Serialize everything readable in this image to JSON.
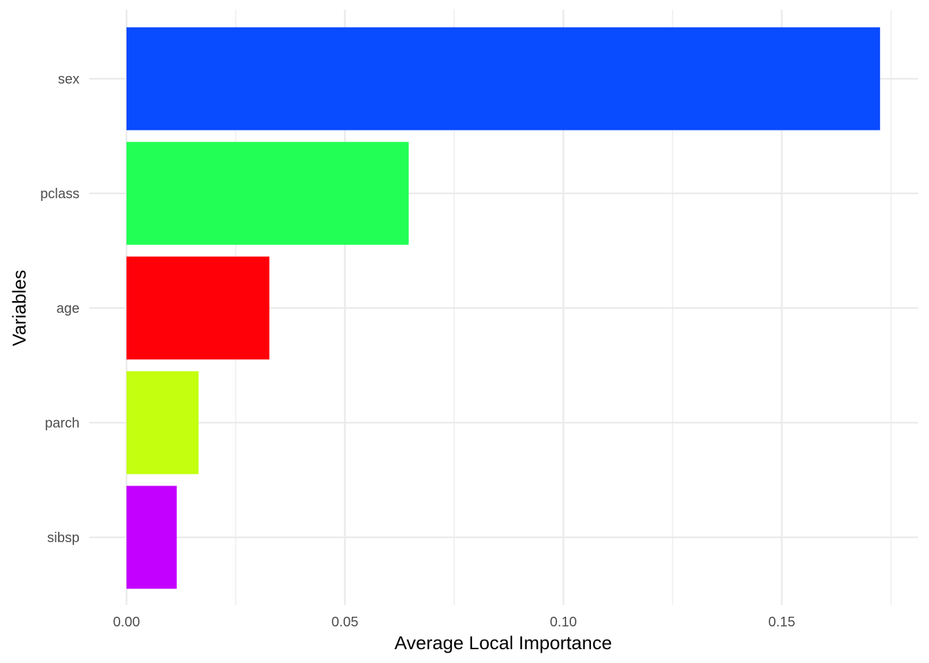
{
  "chart_data": {
    "type": "bar",
    "orientation": "horizontal",
    "title": "",
    "xlabel": "Average Local Importance",
    "ylabel": "Variables",
    "categories": [
      "sex",
      "pclass",
      "age",
      "parch",
      "sibsp"
    ],
    "values": [
      0.1725,
      0.0646,
      0.0327,
      0.0165,
      0.0115
    ],
    "colors": [
      "#094BFF",
      "#22FF55",
      "#FF0008",
      "#C3FF0F",
      "#C300FF"
    ],
    "xticks": [
      0.0,
      0.05,
      0.1,
      0.15
    ],
    "xtick_labels": [
      "0.00",
      "0.05",
      "0.10",
      "0.15"
    ],
    "xlim": [
      0.0,
      0.18
    ],
    "grid": true,
    "legend": "none"
  },
  "style": {
    "grid_color": "#EBEBEB",
    "tick_label_color": "#4D4D4D",
    "axis_title_color": "#000000"
  }
}
